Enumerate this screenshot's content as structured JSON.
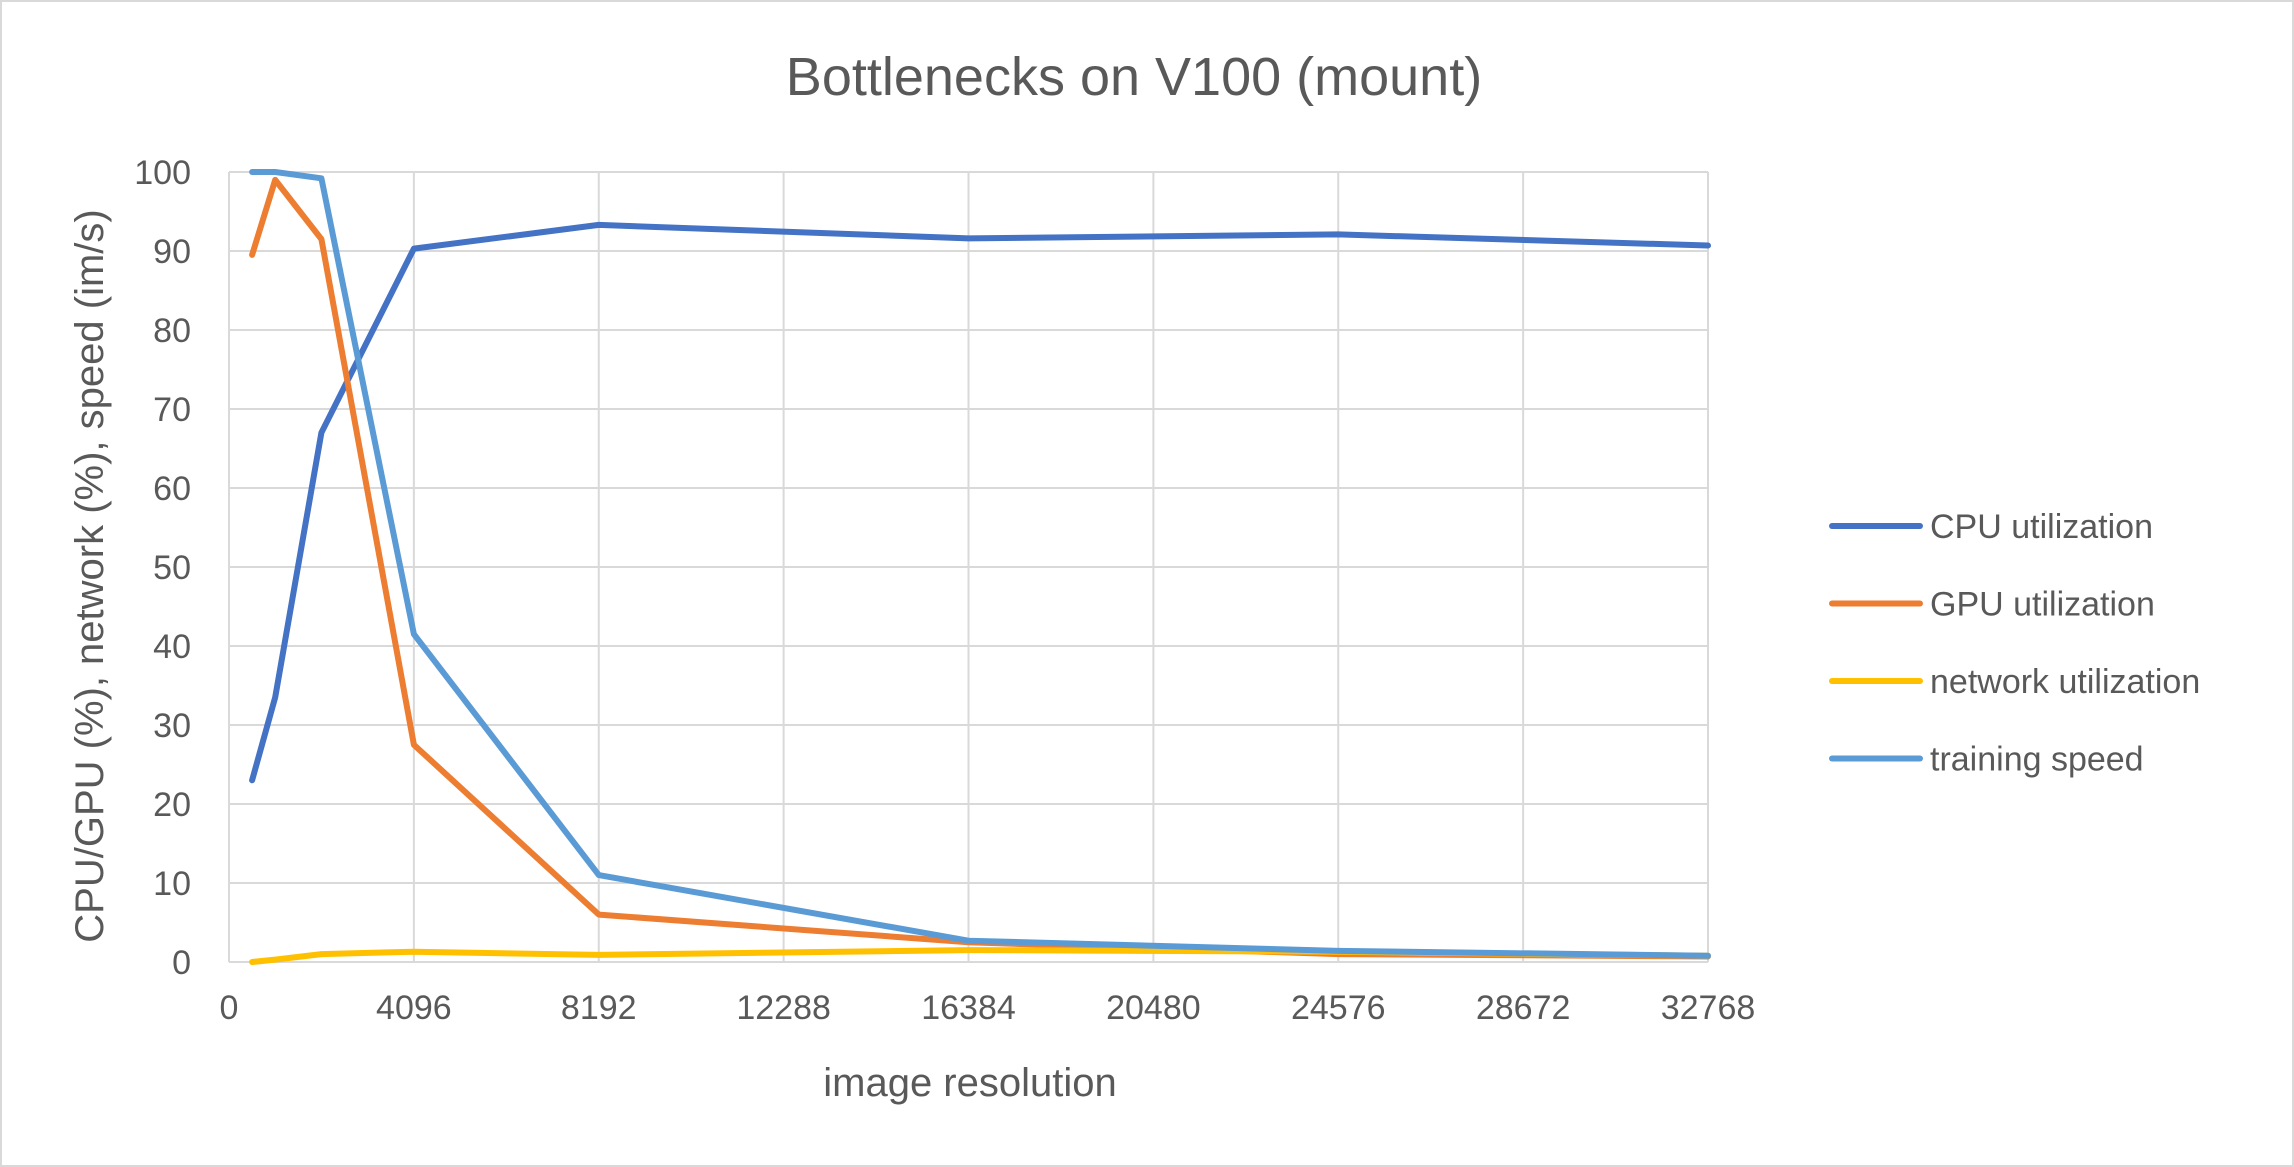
{
  "chart_data": {
    "type": "line",
    "title": "Bottlenecks on V100 (mount)",
    "xlabel": "image resolution",
    "ylabel": "CPU/GPU (%), network (%), speed (im/s)",
    "xlim": [
      0,
      32768
    ],
    "ylim": [
      0,
      100
    ],
    "x_ticks": [
      0,
      4096,
      8192,
      12288,
      16384,
      20480,
      24576,
      28672,
      32768
    ],
    "y_ticks": [
      0,
      10,
      20,
      30,
      40,
      50,
      60,
      70,
      80,
      90,
      100
    ],
    "grid": true,
    "legend_position": "right",
    "x": [
      512,
      1024,
      2048,
      4096,
      8192,
      16384,
      24576,
      32768
    ],
    "series": [
      {
        "name": "CPU utilization",
        "color": "#4472c4",
        "values": [
          23,
          33.5,
          67,
          90.3,
          93.3,
          91.6,
          92.1,
          90.7
        ]
      },
      {
        "name": "GPU utilization",
        "color": "#ed7d31",
        "values": [
          89.5,
          99,
          91.5,
          27.5,
          6,
          2.5,
          1,
          0.7
        ]
      },
      {
        "name": "network utilization",
        "color": "#ffc000",
        "values": [
          0,
          0.3,
          1,
          1.3,
          0.9,
          1.5,
          1.3,
          0.8
        ]
      },
      {
        "name": "training speed",
        "color": "#5b9bd5",
        "values": [
          100,
          100,
          99.2,
          41.5,
          11,
          2.7,
          1.4,
          0.8
        ]
      }
    ]
  }
}
